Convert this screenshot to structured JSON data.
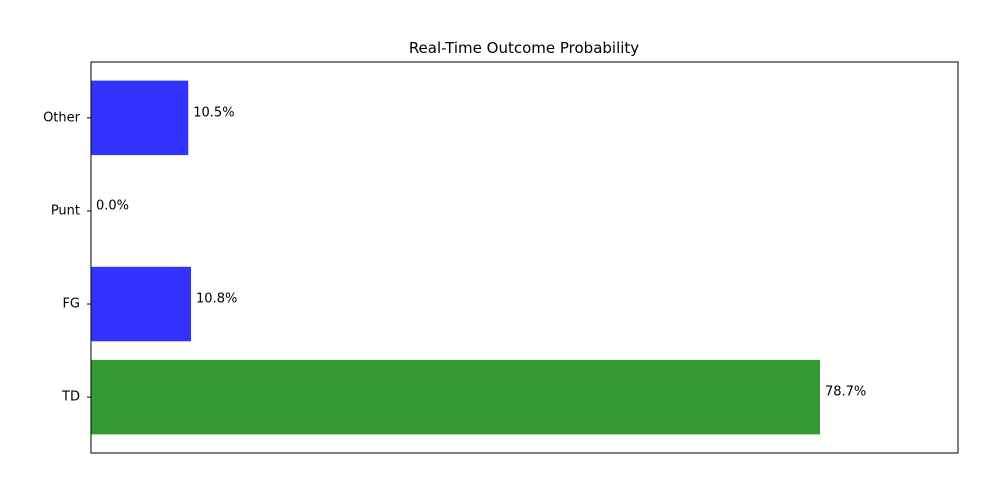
{
  "chart_data": {
    "type": "bar",
    "orientation": "horizontal",
    "title": "Real-Time Outcome Probability",
    "xlabel": "",
    "ylabel": "",
    "categories": [
      "TD",
      "FG",
      "Punt",
      "Other"
    ],
    "values": [
      78.7,
      10.8,
      0.0,
      10.5
    ],
    "data_labels": [
      "78.7%",
      "10.8%",
      "0.0%",
      "10.5%"
    ],
    "bar_colors": [
      "#339933",
      "#3333ff",
      "#3333ff",
      "#3333ff"
    ],
    "xlim": [
      0,
      93.6
    ],
    "x_ticks_visible": false,
    "grid": false,
    "legend": "none"
  }
}
